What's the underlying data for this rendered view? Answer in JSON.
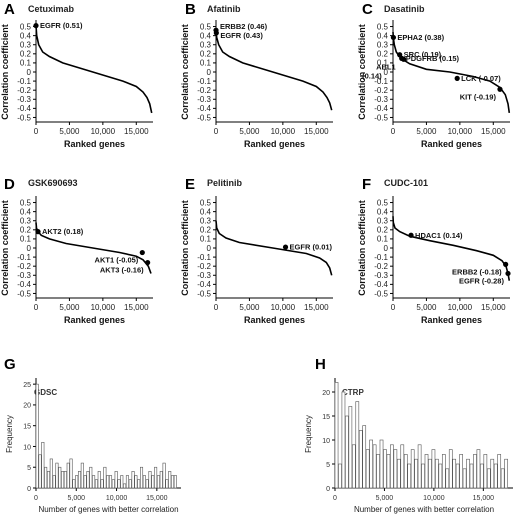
{
  "chart_data": [
    {
      "letter": "A",
      "title": "Cetuximab",
      "type": "line",
      "xlabel": "Ranked genes",
      "ylabel": "Correlation coefficient",
      "xlim": [
        0,
        17500
      ],
      "ylim": [
        -0.55,
        0.55
      ],
      "xticks": [
        "0",
        "5,000",
        "10,000",
        "15,000"
      ],
      "yticks": [
        "0.5",
        "0.4",
        "0.3",
        "0.2",
        "0.1",
        "0",
        "-0.1",
        "-0.2",
        "-0.3",
        "-0.4",
        "-0.5"
      ],
      "curve": {
        "x": [
          0,
          100,
          400,
          1000,
          2000,
          4000,
          8500,
          13000,
          15000,
          16000,
          16600,
          17000,
          17300
        ],
        "y": [
          0.51,
          0.4,
          0.3,
          0.22,
          0.17,
          0.1,
          0.0,
          -0.1,
          -0.16,
          -0.22,
          -0.28,
          -0.35,
          -0.45
        ]
      },
      "points": [
        {
          "label": "EGFR (0.51)",
          "x": 0,
          "y": 0.51,
          "side": "right"
        }
      ]
    },
    {
      "letter": "B",
      "title": "Afatinib",
      "type": "line",
      "xlabel": "Ranked genes",
      "ylabel": "Correlation coefficient",
      "xlim": [
        0,
        17500
      ],
      "ylim": [
        -0.55,
        0.55
      ],
      "xticks": [
        "0",
        "5,000",
        "10,000",
        "15,000"
      ],
      "yticks": [
        "0.5",
        "0.4",
        "0.3",
        "0.2",
        "0.1",
        "0",
        "-0.1",
        "-0.2",
        "-0.3",
        "-0.4",
        "-0.5"
      ],
      "curve": {
        "x": [
          0,
          100,
          400,
          1000,
          2000,
          4000,
          8500,
          13000,
          15000,
          16000,
          16600,
          17000,
          17300
        ],
        "y": [
          0.46,
          0.38,
          0.3,
          0.22,
          0.17,
          0.1,
          0.0,
          -0.1,
          -0.16,
          -0.22,
          -0.28,
          -0.34,
          -0.42
        ]
      },
      "points": [
        {
          "label": "ERBB2 (0.46)",
          "x": 0,
          "y": 0.46,
          "side": "right"
        },
        {
          "label": "EGFR (0.43)",
          "x": 50,
          "y": 0.43,
          "side": "right"
        }
      ]
    },
    {
      "letter": "C",
      "title": "Dasatinib",
      "type": "line",
      "xlabel": "Ranked genes",
      "ylabel": "Correlation coefficient",
      "xlim": [
        0,
        17500
      ],
      "ylim": [
        -0.55,
        0.55
      ],
      "xticks": [
        "0",
        "5,000",
        "10,000",
        "15,000"
      ],
      "yticks": [
        "0.5",
        "0.4",
        "0.3",
        "0.2",
        "0.1",
        "0",
        "-0.1",
        "-0.2",
        "-0.3",
        "-0.4",
        "-0.5"
      ],
      "curve": {
        "x": [
          0,
          50,
          200,
          500,
          1200,
          2500,
          5000,
          8500,
          12000,
          14500,
          16000,
          16800,
          17200,
          17400
        ],
        "y": [
          0.44,
          0.38,
          0.3,
          0.22,
          0.15,
          0.09,
          0.03,
          0.0,
          -0.05,
          -0.1,
          -0.17,
          -0.25,
          -0.35,
          -0.45
        ]
      },
      "points": [
        {
          "label": "EPHA2 (0.38)",
          "x": 60,
          "y": 0.38,
          "side": "right"
        },
        {
          "label": "SRC (0.19)",
          "x": 1000,
          "y": 0.19,
          "side": "right"
        },
        {
          "label": "PDGFRB (0.15)",
          "x": 1300,
          "y": 0.15,
          "side": "right"
        },
        {
          "label": "ABL1",
          "x": 1600,
          "y": 0.14,
          "side": "left"
        },
        {
          "label": "(0.14)",
          "x": 1600,
          "y": 0.14,
          "side": "left2",
          "dot": false
        },
        {
          "label": "LCK (-0.07)",
          "x": 9600,
          "y": -0.07,
          "side": "right"
        },
        {
          "label": "KIT (-0.19)",
          "x": 16000,
          "y": -0.19,
          "side": "left"
        }
      ]
    },
    {
      "letter": "D",
      "title": "GSK690693",
      "type": "line",
      "xlabel": "Ranked genes",
      "ylabel": "Correlation coefficient",
      "xlim": [
        0,
        17500
      ],
      "ylim": [
        -0.55,
        0.55
      ],
      "xticks": [
        "0",
        "5,000",
        "10,000",
        "15,000"
      ],
      "yticks": [
        "0.5",
        "0.4",
        "0.3",
        "0.2",
        "0.1",
        "0",
        "-0.1",
        "-0.2",
        "-0.3",
        "-0.4",
        "-0.5"
      ],
      "curve": {
        "x": [
          0,
          80,
          300,
          800,
          2000,
          4500,
          8500,
          12500,
          15000,
          16000,
          16800,
          17200
        ],
        "y": [
          0.28,
          0.22,
          0.18,
          0.14,
          0.1,
          0.05,
          0.0,
          -0.05,
          -0.09,
          -0.13,
          -0.2,
          -0.28
        ]
      },
      "points": [
        {
          "label": "AKT2 (0.18)",
          "x": 300,
          "y": 0.18,
          "side": "right"
        },
        {
          "label": "AKT1 (-0.05)",
          "x": 15900,
          "y": -0.05,
          "side": "left"
        },
        {
          "label": "AKT3 (-0.16)",
          "x": 16700,
          "y": -0.16,
          "side": "left"
        }
      ]
    },
    {
      "letter": "E",
      "title": "Pelitinib",
      "type": "line",
      "xlabel": "Ranked genes",
      "ylabel": "Correlation coefficient",
      "xlim": [
        0,
        17500
      ],
      "ylim": [
        -0.55,
        0.55
      ],
      "xticks": [
        "0",
        "5,000",
        "10,000",
        "15,000"
      ],
      "yticks": [
        "0.5",
        "0.4",
        "0.3",
        "0.2",
        "0.1",
        "0",
        "-0.1",
        "-0.2",
        "-0.3",
        "-0.4",
        "-0.5"
      ],
      "curve": {
        "x": [
          0,
          100,
          500,
          1500,
          3500,
          8500,
          13500,
          15500,
          16500,
          17000,
          17300
        ],
        "y": [
          0.3,
          0.22,
          0.16,
          0.11,
          0.06,
          0.0,
          -0.06,
          -0.11,
          -0.16,
          -0.22,
          -0.3
        ]
      },
      "points": [
        {
          "label": "EGFR (0.01)",
          "x": 10400,
          "y": 0.01,
          "side": "right"
        }
      ]
    },
    {
      "letter": "F",
      "title": "CUDC-101",
      "type": "line",
      "xlabel": "Ranked genes",
      "ylabel": "Correlation coefficient",
      "xlim": [
        0,
        17500
      ],
      "ylim": [
        -0.55,
        0.55
      ],
      "xticks": [
        "0",
        "5,000",
        "10,000",
        "15,000"
      ],
      "yticks": [
        "0.5",
        "0.4",
        "0.3",
        "0.2",
        "0.1",
        "0",
        "-0.1",
        "-0.2",
        "-0.3",
        "-0.4",
        "-0.5"
      ],
      "curve": {
        "x": [
          0,
          50,
          300,
          1000,
          2500,
          5500,
          9000,
          12500,
          15000,
          16300,
          16900,
          17200,
          17400
        ],
        "y": [
          0.35,
          0.28,
          0.22,
          0.18,
          0.13,
          0.08,
          0.03,
          -0.03,
          -0.08,
          -0.14,
          -0.2,
          -0.28,
          -0.36
        ]
      },
      "points": [
        {
          "label": "HDAC1 (0.14)",
          "x": 2700,
          "y": 0.14,
          "side": "right"
        },
        {
          "label": "ERBB2 (-0.18)",
          "x": 16850,
          "y": -0.18,
          "side": "left"
        },
        {
          "label": "EGFR (-0.28)",
          "x": 17200,
          "y": -0.28,
          "side": "left"
        }
      ]
    },
    {
      "letter": "G",
      "title": "GDSC",
      "type": "bar",
      "xlabel": "Number of genes with better correlation",
      "ylabel": "Frequency",
      "xlim": [
        0,
        18000
      ],
      "ylim": [
        0,
        26
      ],
      "xticks": [
        "0",
        "5,000",
        "10,000",
        "15,000"
      ],
      "yticks": [
        "0",
        "5",
        "10",
        "15",
        "20",
        "25"
      ],
      "bin_width": 350,
      "values": [
        25,
        8,
        11,
        5,
        4,
        7,
        3,
        6,
        5,
        4,
        4,
        6,
        7,
        2,
        3,
        4,
        6,
        3,
        4,
        5,
        3,
        2,
        4,
        2,
        5,
        3,
        3,
        2,
        4,
        2,
        3,
        1,
        3,
        2,
        4,
        3,
        2,
        5,
        3,
        2,
        4,
        3,
        5,
        3,
        4,
        6,
        2,
        4,
        3,
        3
      ]
    },
    {
      "letter": "H",
      "title": "CTRP",
      "type": "bar",
      "xlabel": "Number of genes with better correlation",
      "ylabel": "Frequency",
      "xlim": [
        0,
        18000
      ],
      "ylim": [
        0,
        22.5
      ],
      "xticks": [
        "0",
        "5,000",
        "10,000",
        "15,000"
      ],
      "yticks": [
        "0",
        "5",
        "10",
        "15",
        "20"
      ],
      "bin_width": 350,
      "values": [
        22,
        5,
        20,
        15,
        17,
        9,
        18,
        12,
        13,
        8,
        10,
        9,
        7,
        10,
        8,
        7,
        9,
        8,
        6,
        9,
        7,
        5,
        8,
        6,
        9,
        5,
        7,
        6,
        8,
        6,
        5,
        7,
        4,
        8,
        6,
        5,
        7,
        4,
        6,
        5,
        7,
        8,
        5,
        7,
        4,
        6,
        5,
        7,
        4,
        6
      ]
    }
  ]
}
